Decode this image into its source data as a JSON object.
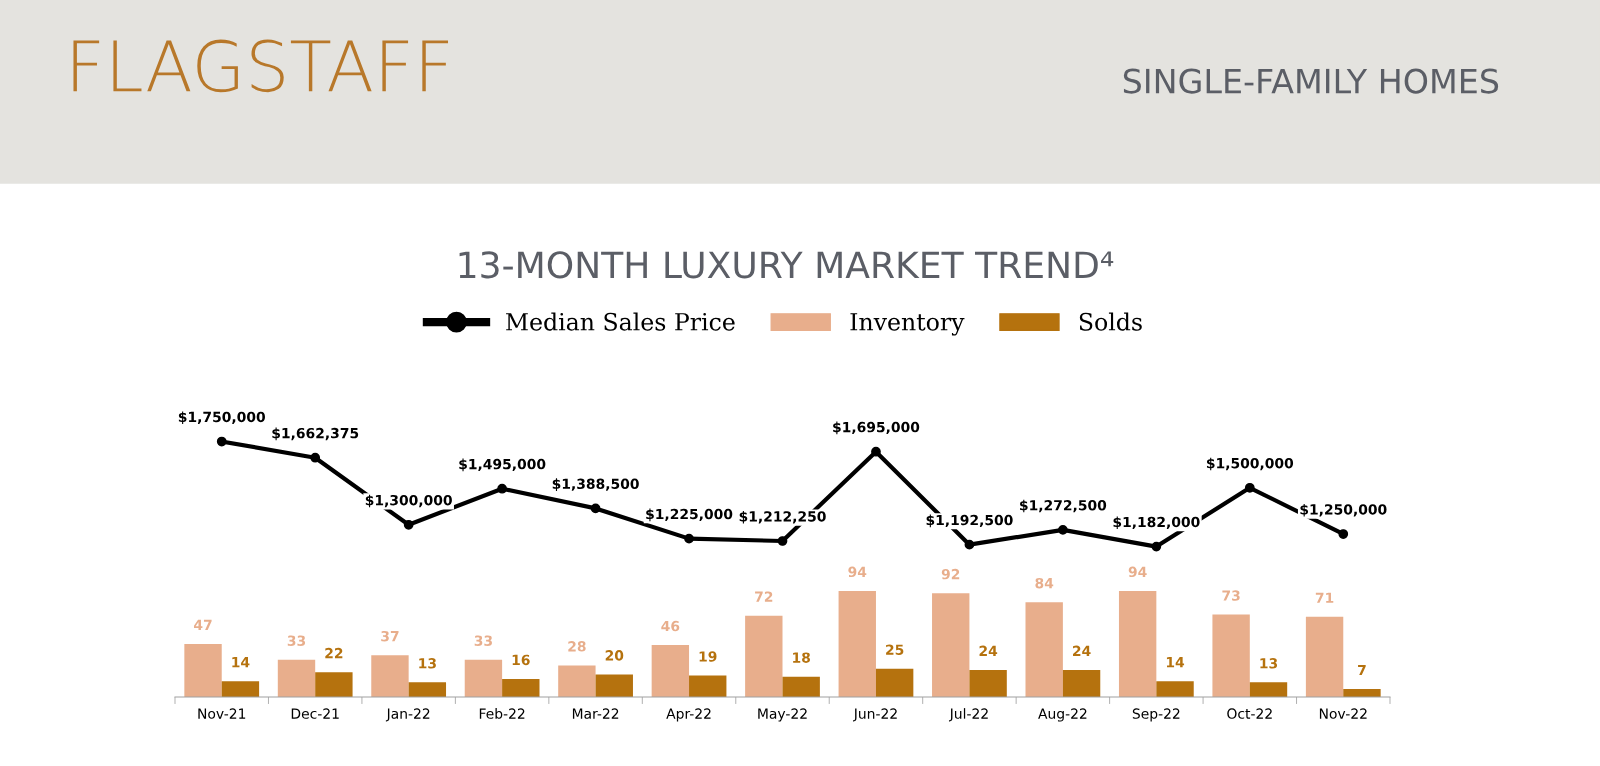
{
  "chart_data": [
    {
      "type": "line",
      "title": "FLAGSTAFF",
      "subtitle": "13-MONTH LUXURY MARKET TREND⁴",
      "annotations": [
        "SINGLE-FAMILY HOMES"
      ],
      "categories": [
        null,
        null,
        null,
        null,
        null,
        null,
        null,
        null,
        null,
        null,
        null,
        null,
        null
      ],
      "series": [
        {
          "name": "Median Sales Price",
          "color": "#000000",
          "value_labels": [
            "$1,750,000",
            "$1,662,375",
            "$1,300,000",
            "$1,495,000",
            "$1,388,500",
            "$1,225,000",
            "$1,212,250",
            "$1,695,000",
            "$1,192,500",
            "$1,272,500",
            "$1,182,000",
            "$1,500,000",
            "$1,250,000"
          ],
          "values": [
            1750000,
            1662375,
            1300000,
            1495000,
            1388500,
            1225000,
            1212250,
            1695000,
            1192500,
            1272500,
            1182000,
            1500000,
            1250000
          ]
        }
      ],
      "marker": "circle",
      "legend": "top",
      "grid": false
    },
    {
      "type": "bar",
      "categories": [
        "Nov-21",
        "Dec-21",
        "Jan-22",
        "Feb-22",
        "Mar-22",
        "Apr-22",
        "May-22",
        "Jun-22",
        "Jul-22",
        "Aug-22",
        "Sep-22",
        "Oct-22",
        "Nov-22"
      ],
      "series": [
        {
          "name": "Inventory",
          "color": "#e8ae8c",
          "values": [
            47,
            33,
            37,
            33,
            28,
            46,
            72,
            94,
            92,
            84,
            94,
            73,
            71
          ]
        },
        {
          "name": "Solds",
          "color": "#b5720e",
          "values": [
            14,
            22,
            13,
            16,
            20,
            19,
            18,
            25,
            24,
            24,
            14,
            13,
            7
          ]
        }
      ],
      "data_labels": true,
      "legend": "top",
      "grid": false,
      "tick_labels": "x"
    }
  ]
}
